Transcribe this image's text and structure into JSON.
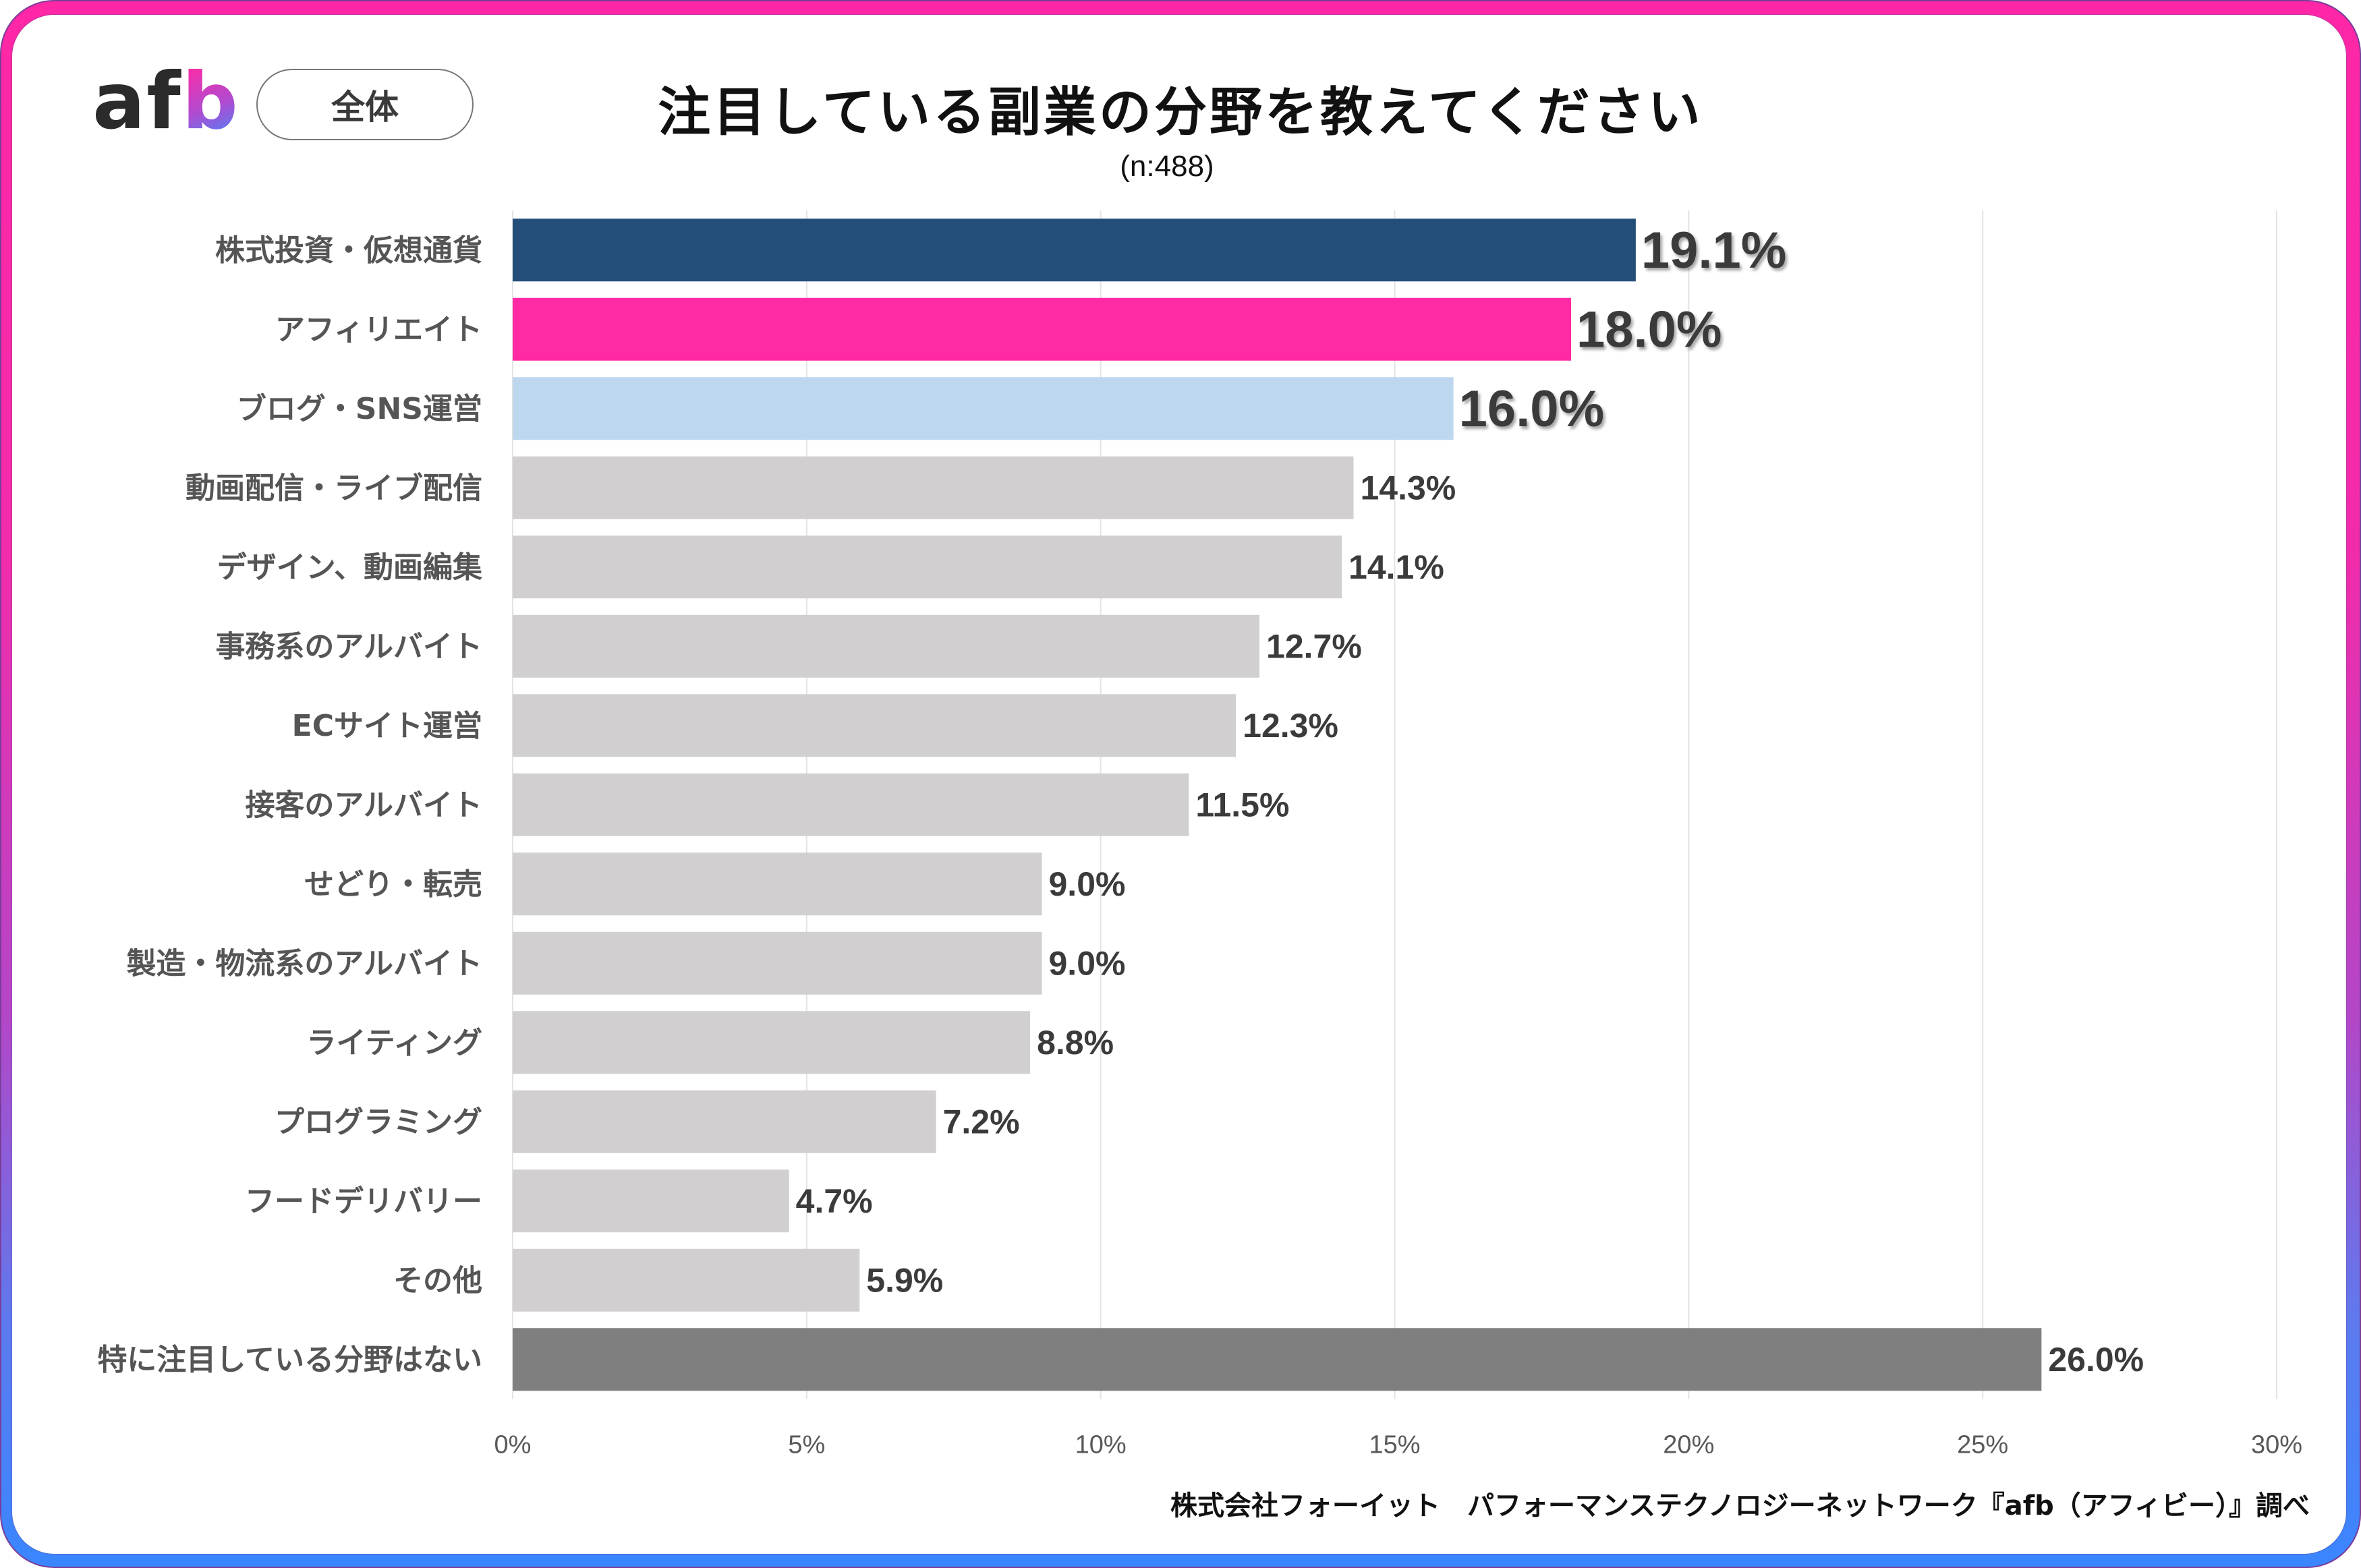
{
  "header": {
    "logo_text_a": "af",
    "logo_text_b": "b",
    "segment_pill": "全体",
    "title": "注目している副業の分野を教えてください",
    "subtitle": "(n:488)"
  },
  "footer": {
    "source": "株式会社フォーイット　パフォーマンステクノロジーネットワーク『afb（アフィビー）』調べ"
  },
  "colors": {
    "frame_top": "#FF27A6",
    "frame_bottom": "#3A86FF",
    "highlight_1": "#224E79",
    "highlight_2": "#FF2AA4",
    "highlight_3": "#BDD7EE",
    "default_bar": "#D1CFD0",
    "none_bar": "#7F7F7F",
    "gridline": "#E3E3E3"
  },
  "chart_data": {
    "type": "bar",
    "orientation": "horizontal",
    "title": "注目している副業の分野を教えてください",
    "subtitle": "(n:488)",
    "xlabel": "",
    "ylabel": "",
    "xlim": [
      0,
      30
    ],
    "x_ticks": [
      0,
      5,
      10,
      15,
      20,
      25,
      30
    ],
    "x_tick_labels": [
      "0%",
      "5%",
      "10%",
      "15%",
      "20%",
      "25%",
      "30%"
    ],
    "grid": true,
    "legend": "none",
    "unit": "%",
    "categories": [
      "株式投資・仮想通貨",
      "アフィリエイト",
      "ブログ・SNS運営",
      "動画配信・ライブ配信",
      "デザイン、動画編集",
      "事務系のアルバイト",
      "ECサイト運営",
      "接客のアルバイト",
      "せどり・転売",
      "製造・物流系のアルバイト",
      "ライティング",
      "プログラミング",
      "フードデリバリー",
      "その他",
      "特に注目している分野はない"
    ],
    "values": [
      19.1,
      18.0,
      16.0,
      14.3,
      14.1,
      12.7,
      12.3,
      11.5,
      9.0,
      9.0,
      8.8,
      7.2,
      4.7,
      5.9,
      26.0
    ],
    "value_labels": [
      "19.1%",
      "18.0%",
      "16.0%",
      "14.3%",
      "14.1%",
      "12.7%",
      "12.3%",
      "11.5%",
      "9.0%",
      "9.0%",
      "8.8%",
      "7.2%",
      "4.7%",
      "5.9%",
      "26.0%"
    ],
    "bar_colors": [
      "#224E79",
      "#FF2AA4",
      "#BDD7EE",
      "#D1CFD0",
      "#D1CFD0",
      "#D1CFD0",
      "#D1CFD0",
      "#D1CFD0",
      "#D1CFD0",
      "#D1CFD0",
      "#D1CFD0",
      "#D1CFD0",
      "#D1CFD0",
      "#D1CFD0",
      "#7F7F7F"
    ],
    "emphasized_labels": [
      true,
      true,
      true,
      false,
      false,
      false,
      false,
      false,
      false,
      false,
      false,
      false,
      false,
      false,
      false
    ]
  }
}
